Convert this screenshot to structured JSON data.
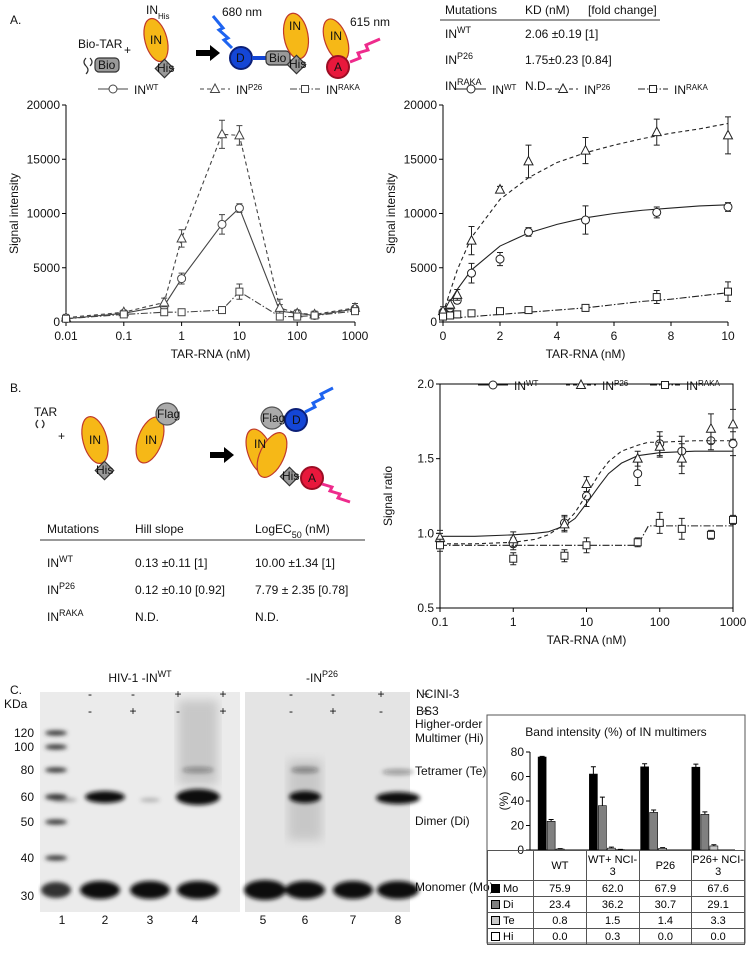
{
  "panel_labels": [
    "A.",
    "B.",
    "C."
  ],
  "schematic_a": {
    "bio_tar": "Bio-TAR",
    "plus": "+",
    "in_his": {
      "base": "IN",
      "sub": "His"
    },
    "in": "IN",
    "his": "His",
    "bio": "Bio",
    "nm680": "680 nm",
    "nm615": "615 nm",
    "donor": "D",
    "acceptor": "A"
  },
  "table_a": {
    "header": [
      "Mutations",
      "KD (nM)",
      "[fold change]"
    ],
    "rows": [
      [
        {
          "base": "IN",
          "sup": "WT"
        },
        "2.06 ±0.19 [1]"
      ],
      [
        {
          "base": "IN",
          "sup": "P26"
        },
        "1.75±0.23 [0.84]"
      ],
      [
        {
          "base": "IN",
          "sup": "RAKA"
        },
        "N.D."
      ]
    ]
  },
  "schematic_b": {
    "tar": "TAR",
    "plus": "+",
    "in": "IN",
    "his": "His",
    "flag": "Flag",
    "donor": "D",
    "acceptor": "A"
  },
  "table_b": {
    "header": [
      "Mutations",
      "Hill slope",
      {
        "base": "LogEC",
        "sub": "50",
        "after": " (nM)"
      }
    ],
    "rows": [
      [
        {
          "base": "IN",
          "sup": "WT"
        },
        "0.13 ±0.11 [1]",
        "10.00 ±1.34 [1]"
      ],
      [
        {
          "base": "IN",
          "sup": "P26"
        },
        "0.12 ±0.10 [0.92]",
        "7.79 ± 2.35 [0.78]"
      ],
      [
        {
          "base": "IN",
          "sup": "RAKA"
        },
        "N.D.",
        "N.D."
      ]
    ]
  },
  "gel": {
    "title_left": {
      "base": "HIV-1 -IN",
      "sup": "WT"
    },
    "title_right": {
      "base": "-IN",
      "sup": "P26"
    },
    "treatments": [
      {
        "name": "NCINI-3",
        "signs": [
          "-",
          "-",
          "+",
          "+",
          "-",
          "-",
          "+",
          "+"
        ]
      },
      {
        "name": "BS3",
        "signs": [
          "-",
          "+",
          "-",
          "+",
          "-",
          "+",
          "-",
          "+"
        ]
      }
    ],
    "kda_label": "KDa",
    "markers": [
      120,
      100,
      80,
      60,
      50,
      40,
      30
    ],
    "lanes": [
      1,
      2,
      3,
      4,
      5,
      6,
      7,
      8
    ],
    "band_labels": [
      "Higher-order",
      "Multimer (Hi)",
      "Tetramer (Te)",
      "Dimer (Di)",
      "Monomer (Mo)"
    ]
  },
  "chart_data": [
    {
      "type": "line",
      "log_x": true,
      "frame": "axes",
      "x_label": "TAR-RNA (nM)",
      "y_label": "Signal intensity",
      "x": [
        0.01,
        0.1,
        0.5,
        1,
        5,
        10,
        50,
        100,
        200,
        1000
      ],
      "xlim": [
        0.01,
        1000
      ],
      "xticks": [
        0.01,
        0.1,
        1,
        10,
        100,
        1000
      ],
      "ylim": [
        0,
        20000
      ],
      "yticks": [
        0,
        5000,
        10000,
        15000,
        20000
      ],
      "series": [
        {
          "name": "IN",
          "name_sup": "WT",
          "color": "#444444",
          "marker": "circle",
          "dash": "solid",
          "values": [
            300,
            800,
            1500,
            4000,
            9000,
            10500,
            1000,
            800,
            600,
            1200
          ],
          "errors": [
            200,
            200,
            300,
            500,
            900,
            400,
            600,
            300,
            300,
            300
          ]
        },
        {
          "name": "IN",
          "name_sup": "P26",
          "color": "#444444",
          "marker": "triangle",
          "dash": "dashed",
          "values": [
            400,
            900,
            1800,
            7700,
            17300,
            17200,
            1300,
            800,
            700,
            1300
          ],
          "errors": [
            300,
            200,
            400,
            800,
            1300,
            900,
            800,
            300,
            300,
            400
          ]
        },
        {
          "name": "IN",
          "name_sup": "RAKA",
          "color": "#444444",
          "marker": "square",
          "dash": "dashdot",
          "values": [
            300,
            700,
            900,
            900,
            1100,
            2800,
            500,
            500,
            600,
            1000
          ],
          "errors": [
            200,
            200,
            200,
            200,
            300,
            700,
            300,
            200,
            200,
            200
          ]
        }
      ]
    },
    {
      "type": "scatter",
      "log_x": false,
      "frame": "axes",
      "x_label": "TAR-RNA (nM)",
      "y_label": "Signal intensity",
      "x": [
        0,
        0.25,
        0.5,
        1,
        2,
        3,
        5,
        7.5,
        10
      ],
      "fit_x": [
        0,
        0.5,
        1,
        2,
        3,
        4,
        5,
        6,
        7,
        8,
        9,
        10
      ],
      "xlim": [
        0,
        10
      ],
      "xticks": [
        0,
        2,
        4,
        6,
        8,
        10
      ],
      "ylim": [
        0,
        20000
      ],
      "yticks": [
        0,
        5000,
        10000,
        15000,
        20000
      ],
      "series": [
        {
          "name": "IN",
          "name_sup": "WT",
          "color": "#222222",
          "marker": "circle",
          "dash": "solid",
          "values": [
            900,
            1300,
            2000,
            4500,
            5800,
            8300,
            9400,
            10100,
            10600
          ],
          "errors": [
            300,
            300,
            300,
            900,
            600,
            400,
            1300,
            500,
            400
          ],
          "fit_values": [
            800,
            3000,
            4800,
            7000,
            8200,
            9000,
            9600,
            10000,
            10300,
            10500,
            10700,
            10800
          ]
        },
        {
          "name": "IN",
          "name_sup": "P26",
          "color": "#222222",
          "marker": "triangle",
          "dash": "dashed",
          "values": [
            1000,
            1600,
            2500,
            7500,
            12200,
            14800,
            15800,
            17500,
            17200
          ],
          "errors": [
            400,
            400,
            500,
            1300,
            300,
            1500,
            1200,
            1200,
            1700
          ],
          "fit_values": [
            800,
            4800,
            7800,
            11300,
            13300,
            14700,
            15600,
            16300,
            16900,
            17400,
            17800,
            18300
          ]
        },
        {
          "name": "IN",
          "name_sup": "RAKA",
          "color": "#222222",
          "marker": "square",
          "dash": "dashdot",
          "values": [
            500,
            600,
            700,
            800,
            1000,
            1100,
            1300,
            2300,
            2800
          ],
          "errors": [
            200,
            200,
            200,
            200,
            200,
            200,
            300,
            600,
            900
          ],
          "fit_values": [
            300,
            400,
            500,
            700,
            900,
            1100,
            1300,
            1600,
            1900,
            2100,
            2400,
            2700
          ]
        }
      ]
    },
    {
      "type": "scatter",
      "log_x": true,
      "frame": "box",
      "x_label": "TAR-RNA (nM)",
      "y_label": "Signal ratio",
      "x": [
        0.1,
        1,
        5,
        10,
        50,
        100,
        200,
        500,
        1000
      ],
      "fit_x": [
        0.1,
        0.3,
        1,
        2,
        3,
        5,
        7,
        10,
        15,
        20,
        30,
        50,
        70,
        100,
        300,
        1000
      ],
      "xlim": [
        0.1,
        1000
      ],
      "xticks": [
        0.1,
        1,
        10,
        100,
        1000
      ],
      "ylim": [
        0.5,
        2
      ],
      "yticks": [
        0.5,
        {
          "value": 1,
          "label": "1.0"
        },
        1.5,
        {
          "value": 2,
          "label": "2.0"
        }
      ],
      "series": [
        {
          "name": "IN",
          "name_sup": "WT",
          "color": "#222222",
          "marker": "circle",
          "dash": "solid",
          "values": [
            0.95,
            0.93,
            1.07,
            1.25,
            1.4,
            1.6,
            1.55,
            1.62,
            1.6
          ],
          "errors": [
            0.05,
            0.04,
            0.05,
            0.07,
            0.08,
            0.08,
            0.1,
            0.06,
            0.08
          ],
          "fit_values": [
            0.98,
            0.98,
            0.99,
            1.0,
            1.01,
            1.05,
            1.1,
            1.2,
            1.32,
            1.4,
            1.47,
            1.52,
            1.53,
            1.54,
            1.55,
            1.55
          ]
        },
        {
          "name": "IN",
          "name_sup": "P26",
          "color": "#222222",
          "marker": "triangle",
          "dash": "dashed",
          "values": [
            0.97,
            0.96,
            1.06,
            1.33,
            1.5,
            1.58,
            1.5,
            1.7,
            1.73
          ],
          "errors": [
            0.05,
            0.05,
            0.05,
            0.05,
            0.05,
            0.07,
            0.1,
            0.1,
            0.1
          ],
          "fit_values": [
            0.93,
            0.93,
            0.94,
            0.96,
            0.99,
            1.06,
            1.14,
            1.26,
            1.4,
            1.48,
            1.55,
            1.59,
            1.61,
            1.61,
            1.62,
            1.62
          ]
        },
        {
          "name": "IN",
          "name_sup": "RAKA",
          "color": "#222222",
          "marker": "square",
          "dash": "dashdot",
          "values": [
            0.92,
            0.83,
            0.85,
            0.92,
            0.94,
            1.07,
            1.03,
            0.99,
            1.09
          ],
          "errors": [
            0.04,
            0.04,
            0.04,
            0.05,
            0.03,
            0.07,
            0.07,
            0.03,
            0.03
          ],
          "fit_values": [
            0.92,
            0.92,
            0.92,
            0.92,
            0.92,
            0.92,
            0.92,
            0.92,
            0.92,
            0.92,
            0.92,
            0.92,
            1.05,
            1.05,
            1.05,
            1.05
          ]
        }
      ]
    },
    {
      "type": "bar",
      "frame": "axes",
      "title": "Band intensity (%) of IN multimers",
      "y_label": "(%)",
      "categories": [
        "WT",
        "WT+ NCI-3",
        "P26",
        "P26+ NCI-3"
      ],
      "ylim": [
        0,
        80
      ],
      "yticks": [
        0,
        20,
        40,
        60,
        80
      ],
      "series": [
        {
          "name": "Mo",
          "color": "#000000",
          "values": [
            75.9,
            62.0,
            67.9,
            67.6
          ],
          "value_labels": [
            "75.9",
            "62.0",
            "67.9",
            "67.6"
          ],
          "errors": [
            0.5,
            6,
            2.5,
            2.5
          ]
        },
        {
          "name": "Di",
          "color": "#808080",
          "values": [
            23.4,
            36.2,
            30.7,
            29.1
          ],
          "value_labels": [
            "23.4",
            "36.2",
            "30.7",
            "29.1"
          ],
          "errors": [
            1.5,
            7,
            2,
            2
          ]
        },
        {
          "name": "Te",
          "color": "#c8c8c8",
          "values": [
            0.8,
            1.5,
            1.4,
            3.3
          ],
          "value_labels": [
            "0.8",
            "1.5",
            "1.4",
            "3.3"
          ],
          "errors": [
            0.3,
            0.8,
            0.5,
            1
          ]
        },
        {
          "name": "Hi",
          "color": "#ffffff",
          "values": [
            0.0,
            0.3,
            0.0,
            0.0
          ],
          "value_labels": [
            "0.0",
            "0.3",
            "0.0",
            "0.0"
          ],
          "errors": [
            0,
            0.2,
            0,
            0
          ]
        }
      ]
    }
  ]
}
